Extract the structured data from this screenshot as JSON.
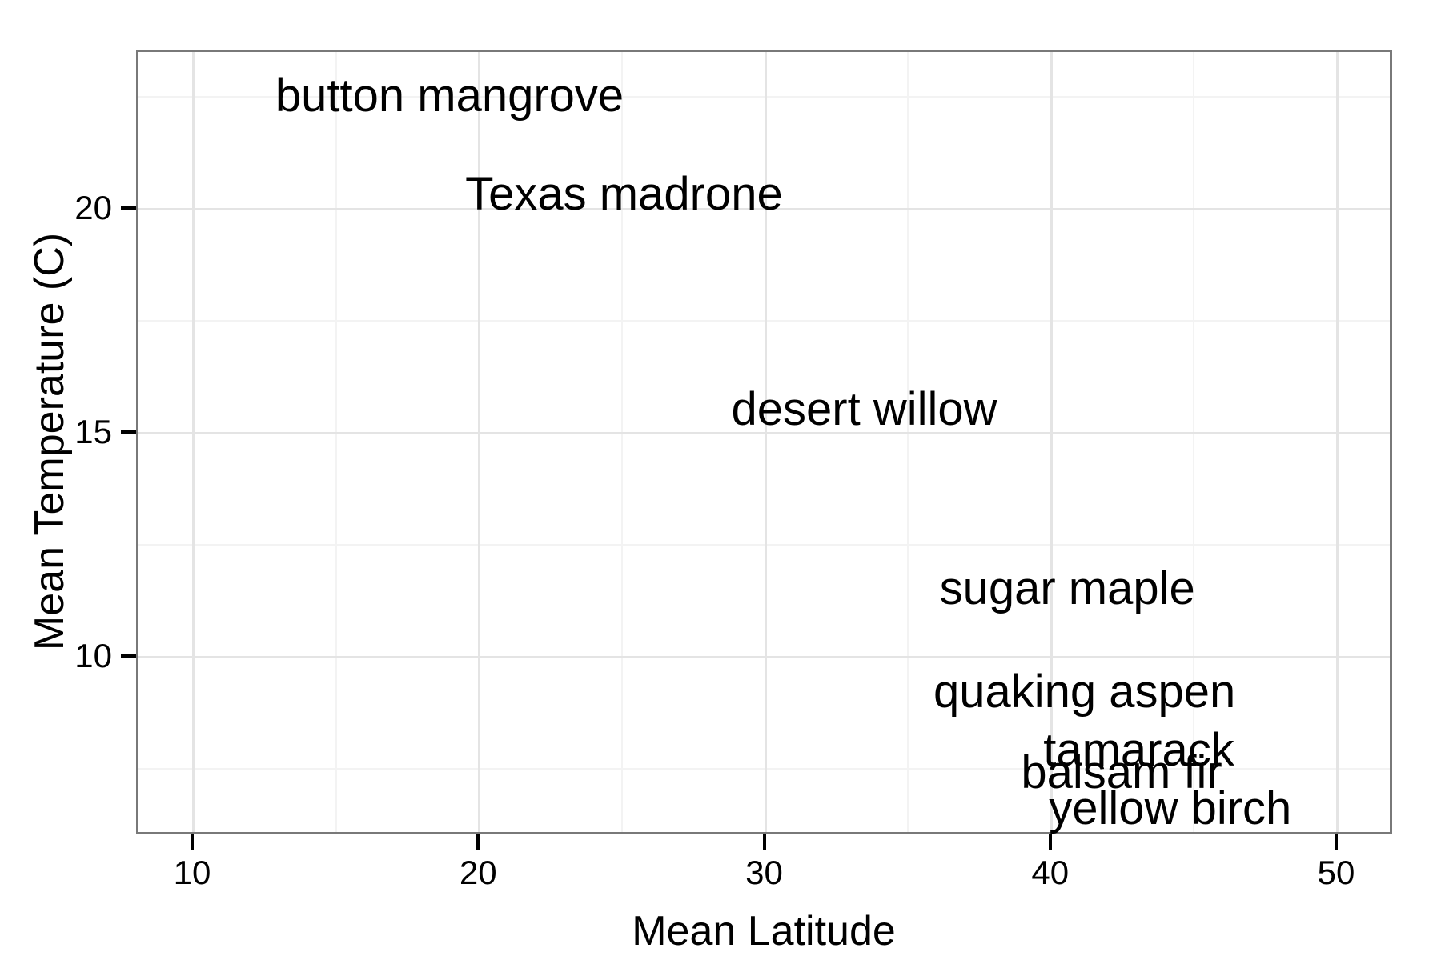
{
  "chart_data": {
    "type": "scatter",
    "title": "",
    "xlabel": "Mean Latitude",
    "ylabel": "Mean Temperature (C)",
    "xlim": [
      8.04,
      51.96
    ],
    "ylim": [
      6.02,
      23.54
    ],
    "x_tick_values": [
      10,
      20,
      30,
      40,
      50
    ],
    "x_minor_values": [
      15,
      25,
      35,
      45
    ],
    "y_tick_values": [
      10,
      15,
      20
    ],
    "y_minor_values": [
      7.5,
      12.5,
      17.5,
      22.5
    ],
    "grid": true,
    "legend": false,
    "points": [
      {
        "species": "button mangrove",
        "x": 19.0,
        "y": 22.5
      },
      {
        "species": "Texas madrone",
        "x": 25.1,
        "y": 20.3
      },
      {
        "species": "desert willow",
        "x": 33.5,
        "y": 15.5
      },
      {
        "species": "sugar maple",
        "x": 40.6,
        "y": 11.5
      },
      {
        "species": "quaking aspen",
        "x": 41.2,
        "y": 9.2
      },
      {
        "species": "tamarack",
        "x": 43.1,
        "y": 7.9
      },
      {
        "species": "balsam fir",
        "x": 42.5,
        "y": 7.4
      },
      {
        "species": "yellow birch",
        "x": 44.2,
        "y": 6.6
      }
    ],
    "colors": {
      "background": "#ffffff",
      "text": "#000000",
      "panel_border": "#797979",
      "tick": "#000000",
      "grid_major": "#e4e4e4",
      "grid_minor": "#f3f3f3"
    }
  }
}
